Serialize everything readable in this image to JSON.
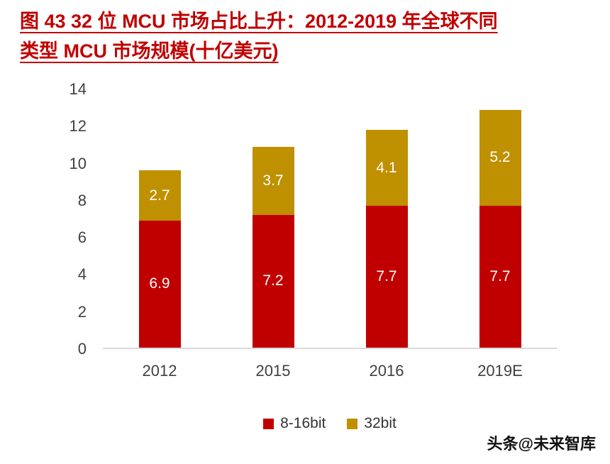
{
  "title": {
    "line1": "图 43 32 位 MCU 市场占比上升：2012-2019 年全球不同",
    "line2": "类型 MCU 市场规模(十亿美元)"
  },
  "watermark": "头条@未来智库",
  "colors": {
    "title_red": "#C00000",
    "bar_red": "#C00000",
    "bar_gold": "#BF9000",
    "axis_text": "#404040",
    "axis_line": "#D9D9D9",
    "data_label_text": "#FFFFFF"
  },
  "chart_data": {
    "type": "bar",
    "stacked": true,
    "title": "图 43 32 位 MCU 市场占比上升：2012-2019 年全球不同类型 MCU 市场规模(十亿美元)",
    "categories": [
      "2012",
      "2015",
      "2016",
      "2019E"
    ],
    "series": [
      {
        "name": "8-16bit",
        "color": "#C00000",
        "values": [
          6.9,
          7.2,
          7.7,
          7.7
        ]
      },
      {
        "name": "32bit",
        "color": "#BF9000",
        "values": [
          2.7,
          3.7,
          4.1,
          5.2
        ]
      }
    ],
    "totals": [
      9.6,
      10.9,
      11.8,
      12.9
    ],
    "xlabel": "",
    "ylabel": "",
    "ylim": [
      0,
      14
    ],
    "yticks": [
      0,
      2,
      4,
      6,
      8,
      10,
      12,
      14
    ],
    "grid": false,
    "legend_position": "bottom",
    "data_labels": "inside-center"
  }
}
